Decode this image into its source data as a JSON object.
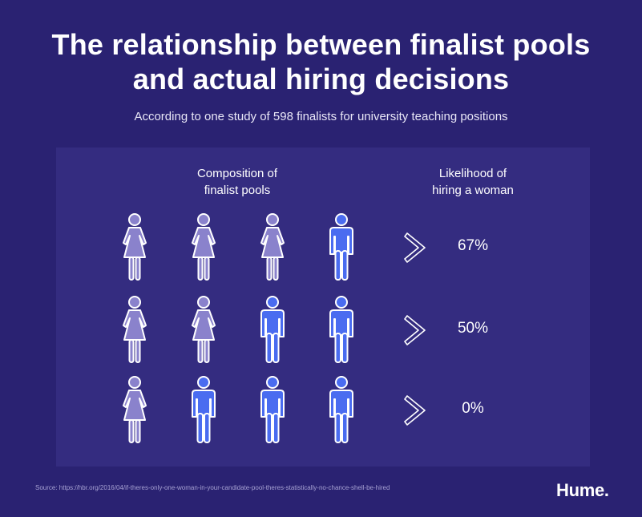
{
  "header": {
    "title_line1": "The relationship between finalist pools",
    "title_line2": "and actual hiring decisions",
    "subtitle": "According to one study of 598 finalists for university teaching positions"
  },
  "columns": {
    "composition_line1": "Composition of",
    "composition_line2": "finalist pools",
    "likelihood_line1": "Likelihood of",
    "likelihood_line2": "hiring a woman"
  },
  "rows": [
    {
      "pool": [
        "woman",
        "woman",
        "woman",
        "man"
      ],
      "likelihood": "67%"
    },
    {
      "pool": [
        "woman",
        "woman",
        "man",
        "man"
      ],
      "likelihood": "50%"
    },
    {
      "pool": [
        "woman",
        "man",
        "man",
        "man"
      ],
      "likelihood": "0%"
    }
  ],
  "footer": {
    "source": "Source: https://hbr.org/2016/04/if-theres-only-one-woman-in-your-candidate-pool-theres-statistically-no-chance-shell-be-hired",
    "logo": "Hume."
  },
  "colors": {
    "background": "#2a2272",
    "panel": "#342c80",
    "woman_icon": "#8a82cc",
    "man_icon": "#4a6cf0",
    "icon_outline": "#ffffff"
  },
  "icons": {
    "woman": "woman-icon",
    "man": "man-icon",
    "arrow": "chevron-right-icon"
  }
}
